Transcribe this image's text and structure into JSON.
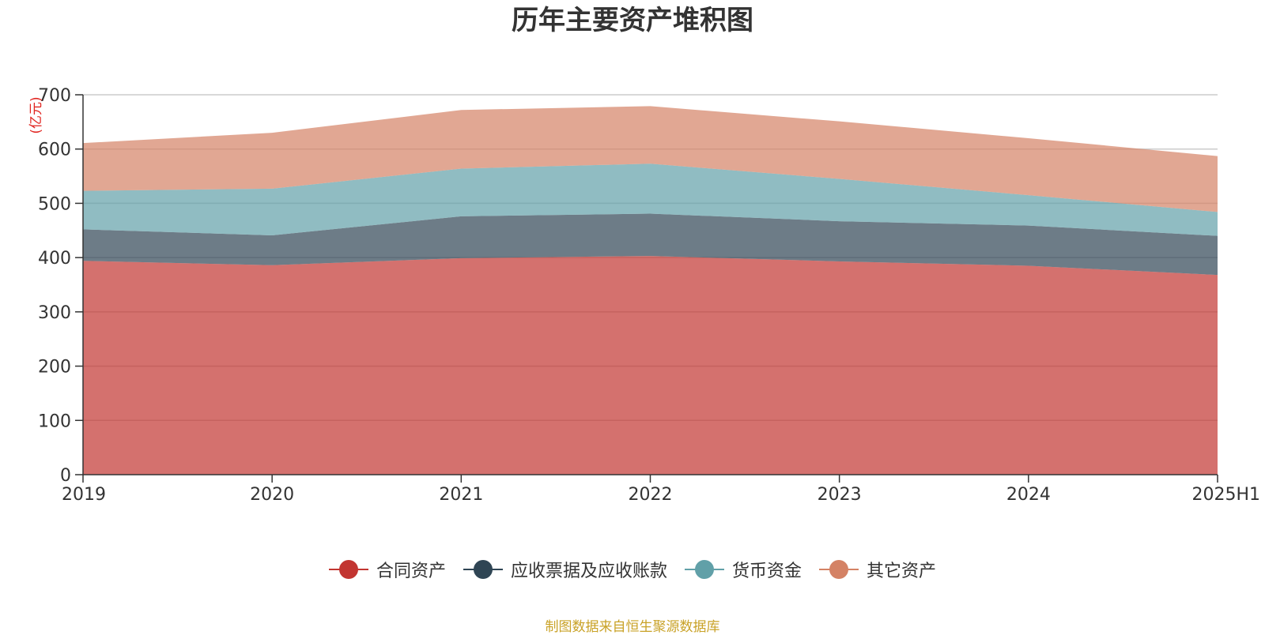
{
  "chart_data": {
    "type": "area",
    "stacked": true,
    "title": "历年主要资产堆积图",
    "ylabel": "(亿元)",
    "xlabel": "",
    "categories": [
      "2019",
      "2020",
      "2021",
      "2022",
      "2023",
      "2024",
      "2025H1"
    ],
    "ylim": [
      0,
      700
    ],
    "yticks": [
      0,
      100,
      200,
      300,
      400,
      500,
      600,
      700
    ],
    "grid": true,
    "legend_position": "bottom",
    "series": [
      {
        "name": "合同资产",
        "color": "#c23531",
        "values": [
          394,
          386,
          399,
          403,
          393,
          385,
          368
        ]
      },
      {
        "name": "应收票据及应收账款",
        "color": "#2f4554",
        "values": [
          58,
          55,
          77,
          78,
          74,
          74,
          72
        ]
      },
      {
        "name": "货币资金",
        "color": "#61a0a8",
        "values": [
          71,
          86,
          88,
          92,
          78,
          56,
          44
        ]
      },
      {
        "name": "其它资产",
        "color": "#d48265",
        "values": [
          88,
          103,
          108,
          106,
          106,
          105,
          103
        ]
      }
    ],
    "source_note": "制图数据来自恒生聚源数据库"
  }
}
